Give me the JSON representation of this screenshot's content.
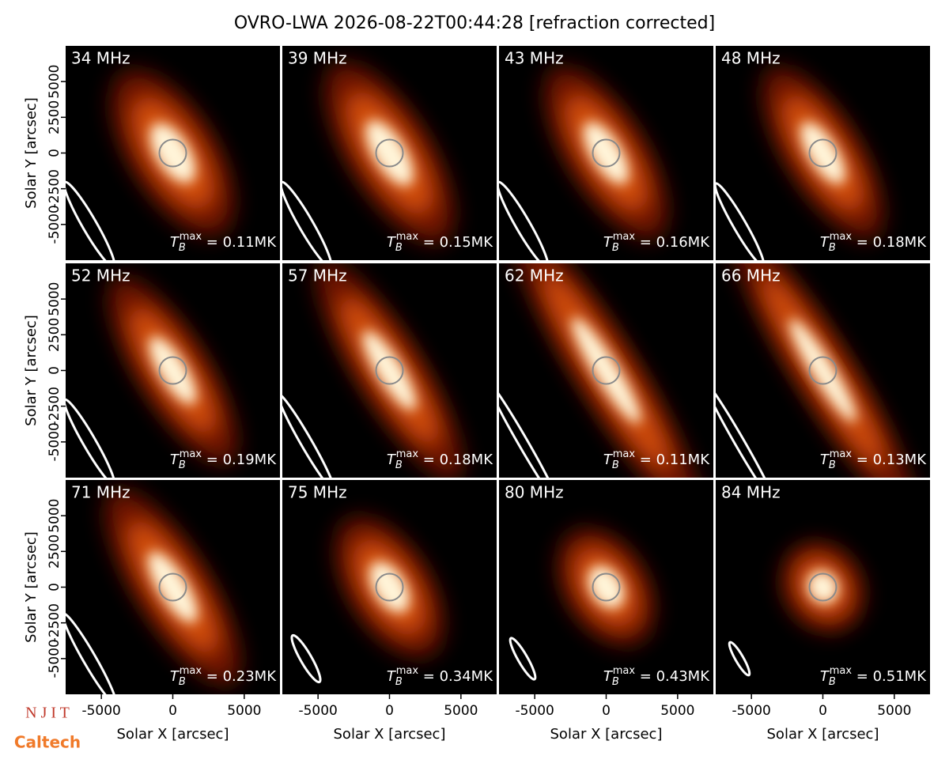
{
  "title": "OVRO-LWA 2026-08-22T00:44:28 [refraction corrected]",
  "logos": [
    "N J I T",
    "Caltech"
  ],
  "chart_data": [
    {
      "type": "image",
      "title": "34 MHz",
      "annotation": {
        "symbol": "T",
        "subscript": "B",
        "superscript": "max",
        "text": " = 0.11MK"
      },
      "xlim": [
        -7500,
        7500
      ],
      "ylim": [
        -7500,
        7500
      ],
      "yticks": [
        -5000,
        -2500,
        0,
        2500,
        5000
      ],
      "ylabel": "Solar Y [arcsec]"
    },
    {
      "type": "image",
      "title": "39 MHz",
      "annotation": {
        "symbol": "T",
        "subscript": "B",
        "superscript": "max",
        "text": " = 0.15MK"
      },
      "xlim": [
        -7500,
        7500
      ],
      "ylim": [
        -7500,
        7500
      ]
    },
    {
      "type": "image",
      "title": "43 MHz",
      "annotation": {
        "symbol": "T",
        "subscript": "B",
        "superscript": "max",
        "text": " = 0.16MK"
      },
      "xlim": [
        -7500,
        7500
      ],
      "ylim": [
        -7500,
        7500
      ]
    },
    {
      "type": "image",
      "title": "48 MHz",
      "annotation": {
        "symbol": "T",
        "subscript": "B",
        "superscript": "max",
        "text": " = 0.18MK"
      },
      "xlim": [
        -7500,
        7500
      ],
      "ylim": [
        -7500,
        7500
      ]
    },
    {
      "type": "image",
      "title": "52 MHz",
      "annotation": {
        "symbol": "T",
        "subscript": "B",
        "superscript": "max",
        "text": " = 0.19MK"
      },
      "xlim": [
        -7500,
        7500
      ],
      "ylim": [
        -7500,
        7500
      ],
      "yticks": [
        -5000,
        -2500,
        0,
        2500,
        5000
      ],
      "ylabel": "Solar Y [arcsec]"
    },
    {
      "type": "image",
      "title": "57 MHz",
      "annotation": {
        "symbol": "T",
        "subscript": "B",
        "superscript": "max",
        "text": " = 0.18MK"
      },
      "xlim": [
        -7500,
        7500
      ],
      "ylim": [
        -7500,
        7500
      ]
    },
    {
      "type": "image",
      "title": "62 MHz",
      "annotation": {
        "symbol": "T",
        "subscript": "B",
        "superscript": "max",
        "text": " = 0.11MK"
      },
      "xlim": [
        -7500,
        7500
      ],
      "ylim": [
        -7500,
        7500
      ]
    },
    {
      "type": "image",
      "title": "66 MHz",
      "annotation": {
        "symbol": "T",
        "subscript": "B",
        "superscript": "max",
        "text": " = 0.13MK"
      },
      "xlim": [
        -7500,
        7500
      ],
      "ylim": [
        -7500,
        7500
      ]
    },
    {
      "type": "image",
      "title": "71 MHz",
      "annotation": {
        "symbol": "T",
        "subscript": "B",
        "superscript": "max",
        "text": " = 0.23MK"
      },
      "xlim": [
        -7500,
        7500
      ],
      "ylim": [
        -7500,
        7500
      ],
      "yticks": [
        -5000,
        -2500,
        0,
        2500,
        5000
      ],
      "ylabel": "Solar Y [arcsec]",
      "xticks": [
        -5000,
        0,
        5000
      ],
      "xlabel": "Solar X [arcsec]"
    },
    {
      "type": "image",
      "title": "75 MHz",
      "annotation": {
        "symbol": "T",
        "subscript": "B",
        "superscript": "max",
        "text": " = 0.34MK"
      },
      "xlim": [
        -7500,
        7500
      ],
      "ylim": [
        -7500,
        7500
      ],
      "xticks": [
        -5000,
        0,
        5000
      ],
      "xlabel": "Solar X [arcsec]"
    },
    {
      "type": "image",
      "title": "80 MHz",
      "annotation": {
        "symbol": "T",
        "subscript": "B",
        "superscript": "max",
        "text": " = 0.43MK"
      },
      "xlim": [
        -7500,
        7500
      ],
      "ylim": [
        -7500,
        7500
      ],
      "xticks": [
        -5000,
        0,
        5000
      ],
      "xlabel": "Solar X [arcsec]"
    },
    {
      "type": "image",
      "title": "84 MHz",
      "annotation": {
        "symbol": "T",
        "subscript": "B",
        "superscript": "max",
        "text": " = 0.51MK"
      },
      "xlim": [
        -7500,
        7500
      ],
      "ylim": [
        -7500,
        7500
      ],
      "xticks": [
        -5000,
        0,
        5000
      ],
      "xlabel": "Solar X [arcsec]"
    }
  ]
}
